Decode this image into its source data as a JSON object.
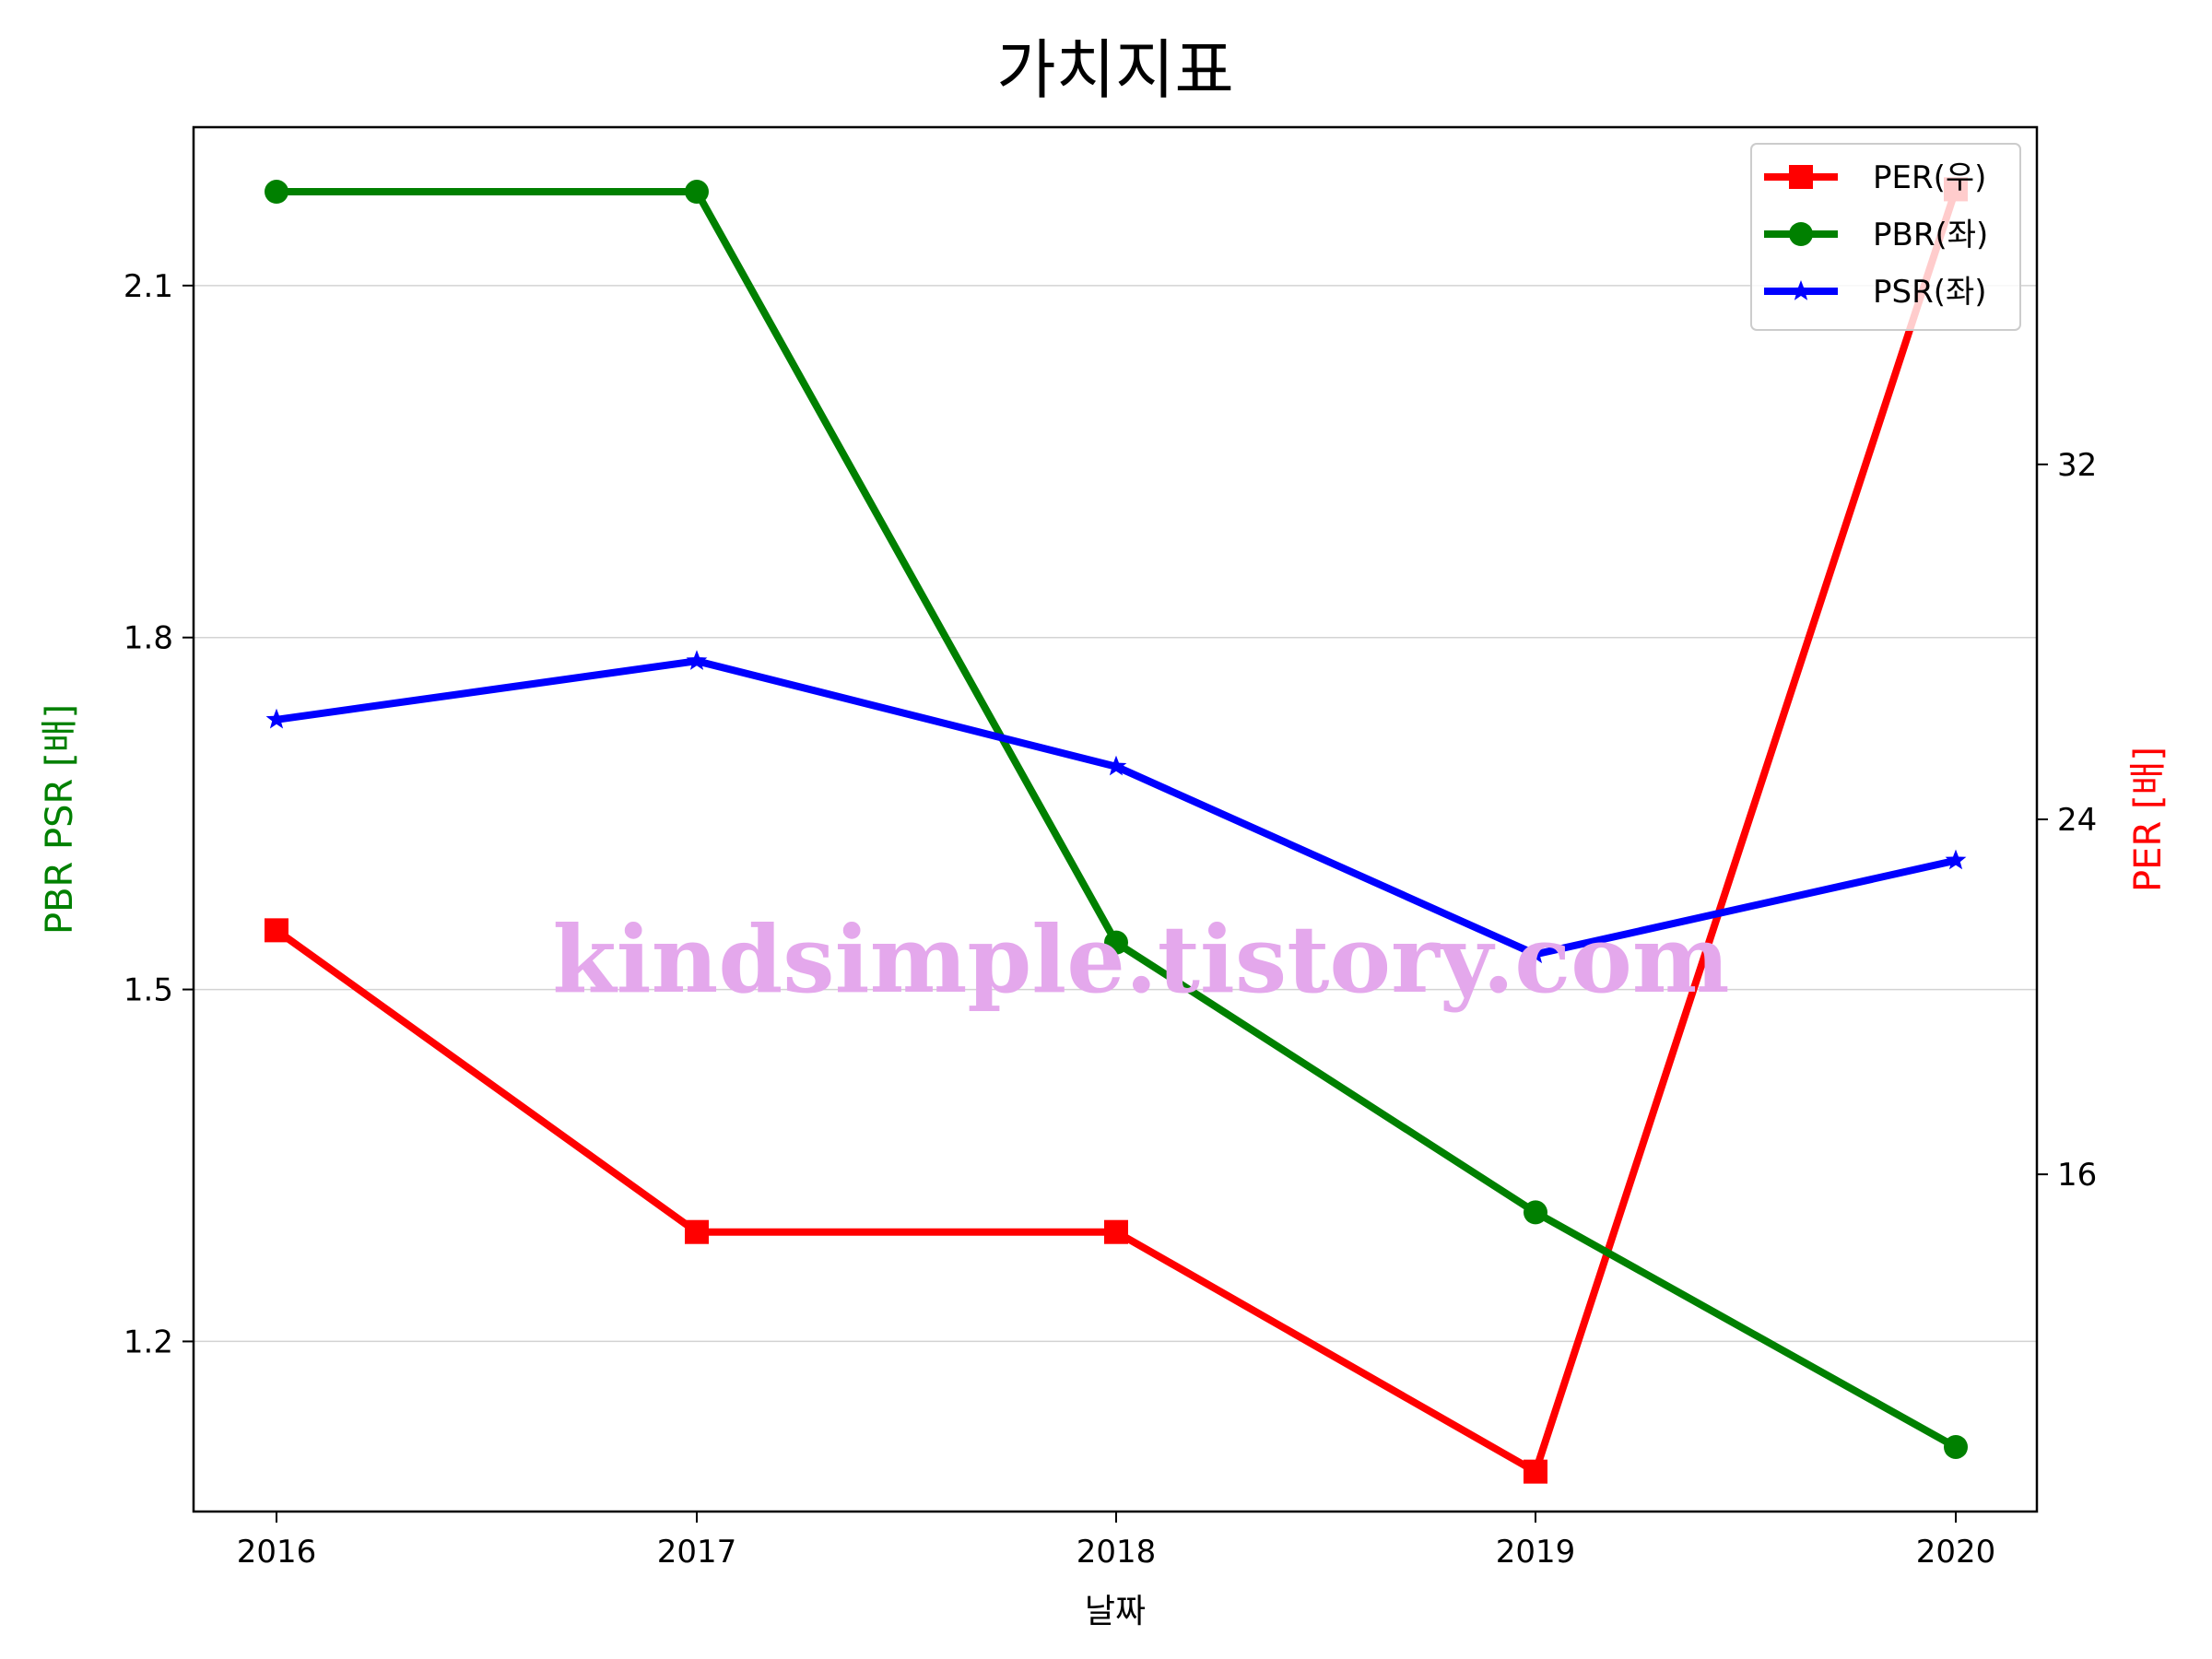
{
  "chart_data": {
    "type": "line",
    "title": "가치지표",
    "xlabel": "날짜",
    "ylabel_left": "PBR PSR [배]",
    "ylabel_right": "PER [배]",
    "x": [
      "2016",
      "2017",
      "2018",
      "2019",
      "2020"
    ],
    "left_axis": {
      "ylim": [
        1.055,
        2.235
      ],
      "ticks": [
        1.2,
        1.5,
        1.8,
        2.1
      ],
      "tick_labels": [
        "1.2",
        "1.5",
        "1.8",
        "2.1"
      ],
      "grid": true
    },
    "right_axis": {
      "ylim": [
        8.4,
        39.6
      ],
      "ticks": [
        16,
        24,
        32
      ],
      "tick_labels": [
        "16",
        "24",
        "32"
      ]
    },
    "series": [
      {
        "name": "PER(우)",
        "axis": "right",
        "color": "#ff0000",
        "marker": "square",
        "values": [
          21.5,
          14.7,
          14.7,
          9.3,
          38.2
        ]
      },
      {
        "name": "PBR(좌)",
        "axis": "left",
        "color": "#008000",
        "marker": "circle",
        "values": [
          2.18,
          2.18,
          1.54,
          1.31,
          1.11
        ]
      },
      {
        "name": "PSR(좌)",
        "axis": "left",
        "color": "#0000ff",
        "marker": "star",
        "values": [
          1.73,
          1.78,
          1.69,
          1.53,
          1.61
        ]
      }
    ],
    "legend": {
      "position": "top-right"
    },
    "watermark": "kindsimple.tistory.com"
  }
}
